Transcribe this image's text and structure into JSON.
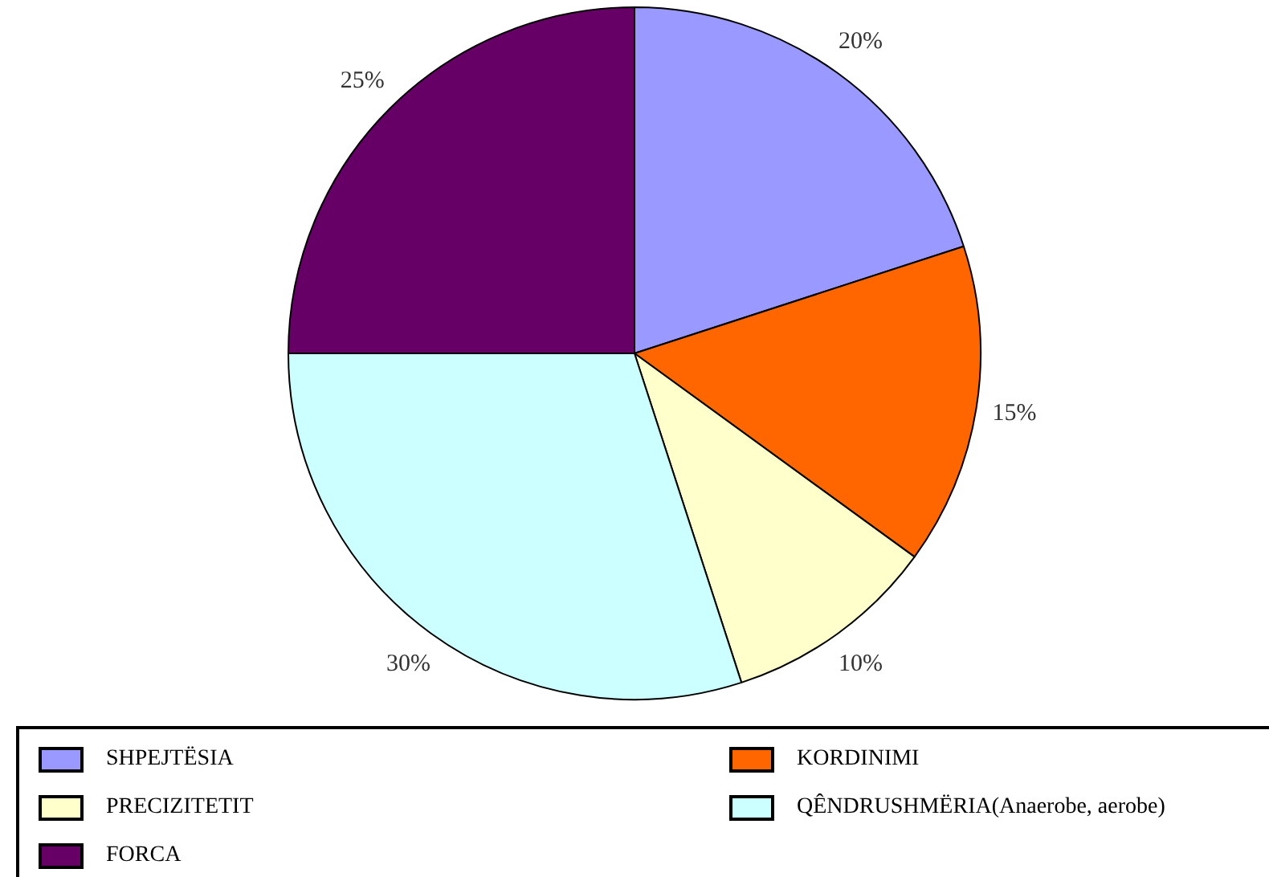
{
  "chart_data": {
    "type": "pie",
    "categories": [
      "SHPEJTËSIA",
      "KORDINIMI",
      "PRECIZITETIT",
      "QÊNDRUSHMËRIA(Anaerobe, aerobe)",
      "FORCA"
    ],
    "values": [
      20,
      15,
      10,
      30,
      25
    ],
    "value_labels": [
      "20%",
      "15%",
      "10%",
      "30%",
      "25%"
    ],
    "colors": [
      "#9999ff",
      "#ff6600",
      "#ffffcc",
      "#ccffff",
      "#660066"
    ],
    "legend": "bottom"
  }
}
